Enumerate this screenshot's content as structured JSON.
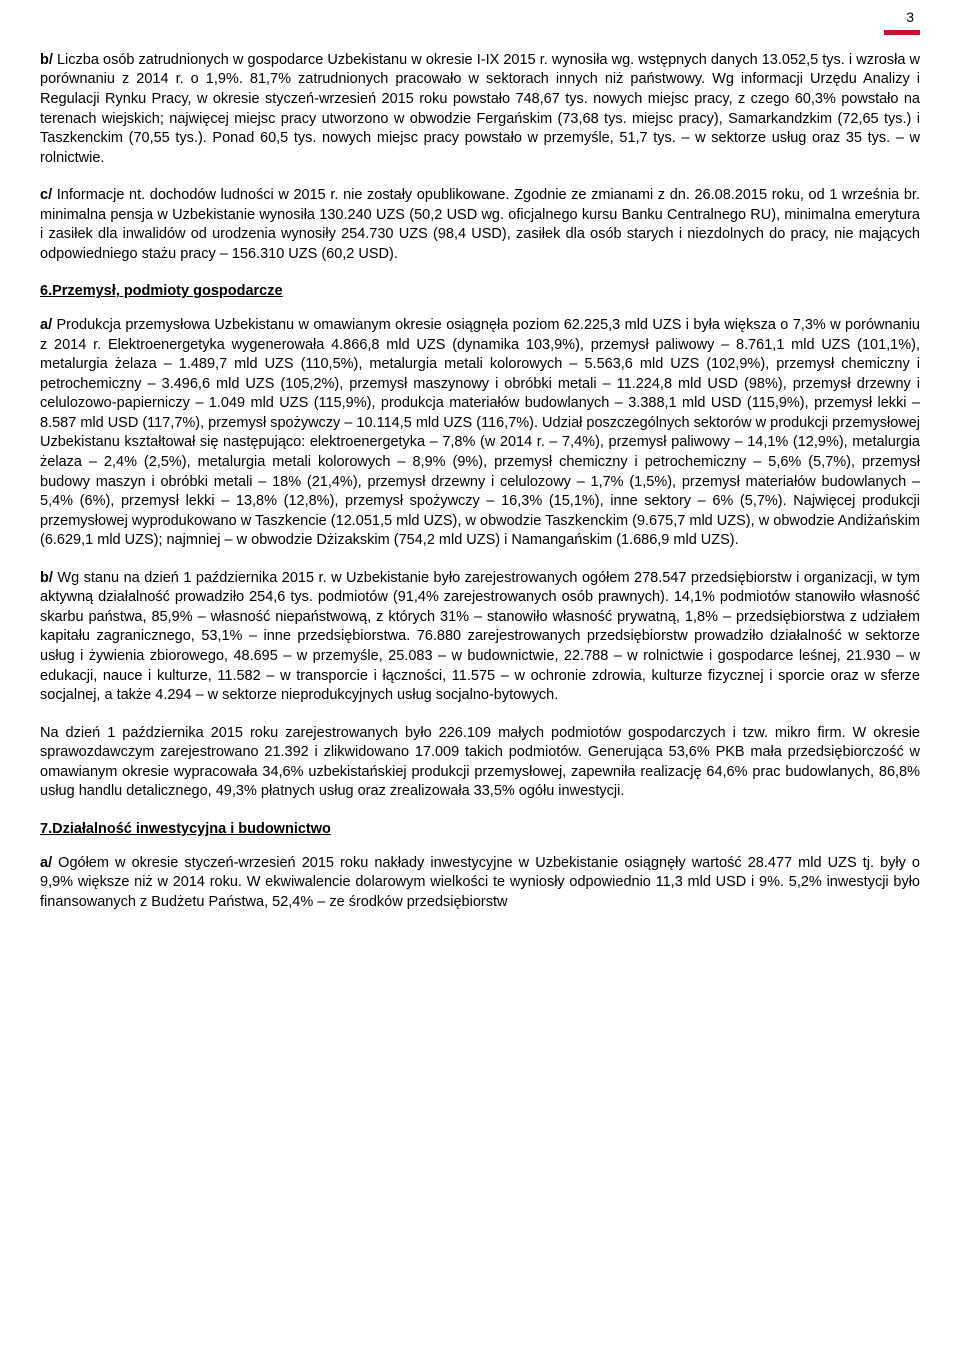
{
  "colors": {
    "accent": "#c8102e",
    "text": "#000000",
    "background": "#ffffff"
  },
  "typography": {
    "font_family": "Verdana, Arial, sans-serif",
    "font_size_pt": 11,
    "line_height": 1.35
  },
  "page_number": "3",
  "para_b": "b/ Liczba osób zatrudnionych w gospodarce Uzbekistanu w okresie I-IX 2015 r. wynosiła wg. wstępnych danych 13.052,5 tys. i wzrosła w porównaniu z 2014 r. o 1,9%. 81,7% zatrudnionych pracowało w sektorach innych niż państwowy. Wg informacji Urzędu Analizy i Regulacji Rynku Pracy, w okresie styczeń-wrzesień 2015 roku powstało 748,67 tys. nowych miejsc pracy, z czego 60,3% powstało na terenach wiejskich; najwięcej miejsc pracy utworzono w obwodzie Fergańskim (73,68 tys. miejsc pracy), Samarkandzkim (72,65 tys.) i Taszkenckim (70,55 tys.). Ponad 60,5 tys. nowych miejsc pracy powstało w przemyśle, 51,7 tys. – w sektorze usług oraz 35 tys. – w rolnictwie.",
  "para_c": "c/ Informacje nt. dochodów ludności w 2015 r. nie zostały opublikowane. Zgodnie ze zmianami z dn. 26.08.2015 roku, od 1 września br. minimalna pensja w Uzbekistanie wynosiła 130.240 UZS (50,2 USD wg. oficjalnego kursu Banku Centralnego RU), minimalna emerytura i zasiłek dla inwalidów od urodzenia wynosiły 254.730 UZS (98,4 USD), zasiłek dla osób starych i niezdolnych do pracy, nie mających odpowiedniego stażu pracy – 156.310 UZS (60,2 USD).",
  "heading6": "6.Przemysł, podmioty gospodarcze",
  "para6a": "a/ Produkcja przemysłowa Uzbekistanu w omawianym okresie osiągnęła poziom 62.225,3 mld UZS i była większa o 7,3% w porównaniu z 2014 r. Elektroenergetyka wygenerowała 4.866,8 mld UZS (dynamika 103,9%), przemysł paliwowy – 8.761,1 mld UZS (101,1%), metalurgia żelaza – 1.489,7 mld UZS (110,5%), metalurgia metali kolorowych – 5.563,6 mld UZS (102,9%), przemysł chemiczny i petrochemiczny – 3.496,6 mld UZS (105,2%), przemysł maszynowy i obróbki metali – 11.224,8 mld USD (98%), przemysł drzewny i celulozowo-papierniczy – 1.049 mld UZS (115,9%), produkcja materiałów budowlanych – 3.388,1 mld USD (115,9%), przemysł lekki – 8.587 mld USD (117,7%), przemysł spożywczy – 10.114,5 mld UZS (116,7%). Udział poszczególnych sektorów w produkcji przemysłowej Uzbekistanu kształtował się następująco: elektroenergetyka – 7,8% (w 2014 r. – 7,4%), przemysł paliwowy – 14,1% (12,9%), metalurgia żelaza – 2,4% (2,5%), metalurgia metali kolorowych – 8,9% (9%), przemysł chemiczny i petrochemiczny – 5,6% (5,7%), przemysł budowy maszyn i obróbki metali – 18% (21,4%), przemysł drzewny i celulozowy – 1,7% (1,5%), przemysł materiałów budowlanych – 5,4% (6%), przemysł lekki – 13,8% (12,8%), przemysł spożywczy – 16,3% (15,1%), inne sektory – 6% (5,7%). Najwięcej produkcji przemysłowej wyprodukowano w Taszkencie (12.051,5 mld UZS), w obwodzie Taszkenckim (9.675,7 mld UZS), w obwodzie Andiżańskim (6.629,1 mld UZS); najmniej – w obwodzie Dżizakskim (754,2 mld UZS) i Namangańskim (1.686,9 mld UZS).",
  "para6b": "b/ Wg stanu na dzień 1 października 2015 r. w Uzbekistanie było zarejestrowanych ogółem 278.547 przedsiębiorstw i organizacji, w tym aktywną działalność prowadziło 254,6 tys. podmiotów (91,4% zarejestrowanych osób prawnych). 14,1% podmiotów stanowiło własność skarbu państwa, 85,9% – własność niepaństwową, z których 31% – stanowiło własność prywatną, 1,8% – przedsiębiorstwa z udziałem kapitału zagranicznego, 53,1% – inne przedsiębiorstwa. 76.880 zarejestrowanych przedsiębiorstw prowadziło działalność w sektorze usług i żywienia zbiorowego, 48.695 – w przemyśle, 25.083 – w budownictwie, 22.788 – w rolnictwie i gospodarce leśnej, 21.930 – w edukacji, nauce i kulturze, 11.582 – w transporcie i łączności, 11.575 – w ochronie zdrowia, kulturze fizycznej i sporcie oraz w sferze socjalnej, a także 4.294 – w sektorze nieprodukcyjnych usług socjalno-bytowych.",
  "para6c": "Na dzień 1 października 2015 roku zarejestrowanych było 226.109 małych podmiotów gospodarczych i tzw. mikro firm. W okresie sprawozdawczym zarejestrowano 21.392 i zlikwidowano 17.009 takich podmiotów. Generująca 53,6% PKB mała przedsiębiorczość w omawianym okresie wypracowała 34,6% uzbekistańskiej produkcji przemysłowej, zapewniła realizację 64,6% prac budowlanych, 86,8% usług handlu detalicznego, 49,3% płatnych usług oraz zrealizowała 33,5% ogółu inwestycji.",
  "heading7": "7.Działalność inwestycyjna i budownictwo",
  "para7a": "a/ Ogółem w okresie styczeń-wrzesień 2015 roku nakłady inwestycyjne w Uzbekistanie osiągnęły wartość 28.477 mld UZS tj. były o 9,9% większe niż w 2014 roku. W ekwiwalencie dolarowym wielkości te wyniosły odpowiednio 11,3 mld USD i 9%. 5,2% inwestycji było finansowanych z Budżetu Państwa, 52,4% – ze środków przedsiębiorstw"
}
